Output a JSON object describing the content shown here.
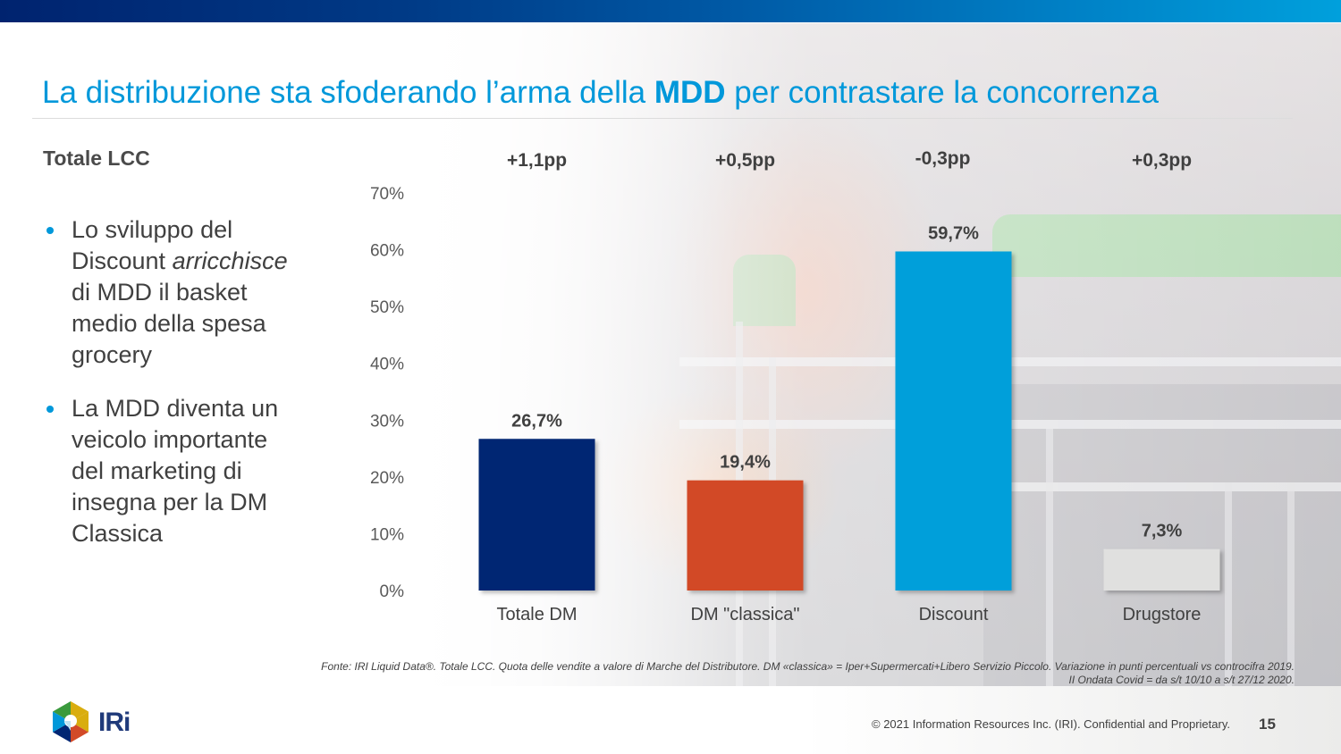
{
  "header": {
    "title_pre": "La distribuzione sta sfoderando l’arma della ",
    "title_bold": "MDD",
    "title_post": " per contrastare la concorrenza"
  },
  "left_panel": {
    "subhead": "Totale LCC",
    "bullets": [
      {
        "pre": "Lo sviluppo del Discount ",
        "italic": "arricchisce",
        "post": " di MDD il basket medio della spesa grocery"
      },
      {
        "pre": "La MDD diventa un veicolo importante del marketing di insegna per la DM Classica",
        "italic": "",
        "post": ""
      }
    ]
  },
  "chart_data": {
    "type": "bar",
    "title": "",
    "xlabel": "",
    "ylabel": "",
    "categories": [
      "Totale DM",
      "DM \"classica\"",
      "Discount",
      "Drugstore"
    ],
    "values": [
      26.7,
      19.4,
      59.7,
      7.3
    ],
    "value_labels": [
      "26,7%",
      "19,4%",
      "59,7%",
      "7,3%"
    ],
    "deltas": [
      "+1,1pp",
      "+0,5pp",
      "-0,3pp",
      "+0,3pp"
    ],
    "bar_colors": [
      "#002673",
      "#d24a28",
      "#009fda",
      "#e0e0df"
    ],
    "ylim": [
      0,
      70
    ],
    "yticks": [
      0,
      10,
      20,
      30,
      40,
      50,
      60,
      70
    ],
    "ytick_labels": [
      "0%",
      "10%",
      "20%",
      "30%",
      "40%",
      "50%",
      "60%",
      "70%"
    ],
    "grid": false,
    "legend": "none"
  },
  "source_note": {
    "line1": "Fonte: IRI Liquid Data®. Totale LCC. Quota delle vendite a valore di Marche del Distributore. DM «classica» = Iper+Supermercati+Libero Servizio Piccolo. Variazione in punti percentuali vs controcifra 2019.",
    "line2": "II Ondata Covid = da s/t 10/10 a s/t 27/12 2020."
  },
  "footer": {
    "logo_text": "IRi",
    "copyright": "© 2021 Information Resources Inc. (IRI). Confidential and Proprietary.",
    "page_number": "15"
  },
  "colors": {
    "title": "#0098da",
    "text": "#404040",
    "accent_bullet": "#0098da"
  }
}
